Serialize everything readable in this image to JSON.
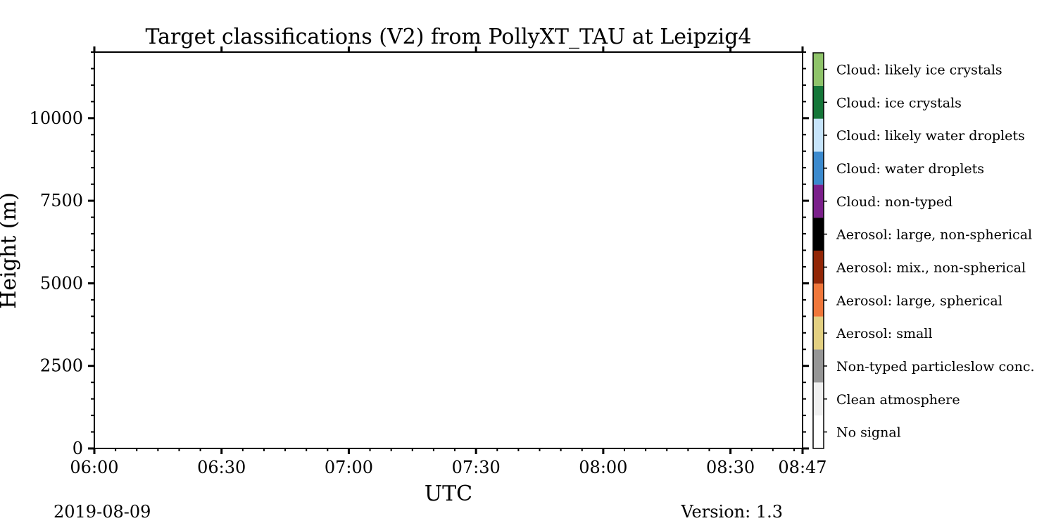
{
  "chart_data": {
    "type": "heatmap",
    "title": "Target classifications (V2) from PollyXT_TAU at Leipzig4",
    "xlabel": "UTC",
    "ylabel": "Height (m)",
    "xlim": [
      "06:00",
      "08:47"
    ],
    "ylim": [
      0,
      12000
    ],
    "x_ticks": [
      "06:00",
      "06:30",
      "07:00",
      "07:30",
      "08:00",
      "08:30",
      "08:47"
    ],
    "y_ticks": [
      0,
      2500,
      5000,
      7500,
      10000
    ],
    "data": [],
    "grid": false,
    "classes": [
      {
        "label": "No signal",
        "color": "#ffffff"
      },
      {
        "label": "Clean atmosphere",
        "color": "#f0f0f0"
      },
      {
        "label": "Non-typed particleslow conc.",
        "color": "#969696"
      },
      {
        "label": "Aerosol: small",
        "color": "#e3d081"
      },
      {
        "label": "Aerosol: large, spherical",
        "color": "#f0773a"
      },
      {
        "label": "Aerosol: mix., non-spherical",
        "color": "#922606"
      },
      {
        "label": "Aerosol: large, non-spherical",
        "color": "#000000"
      },
      {
        "label": "Cloud: non-typed",
        "color": "#7b1f8b"
      },
      {
        "label": "Cloud: water droplets",
        "color": "#3b8ace"
      },
      {
        "label": "Cloud: likely water droplets",
        "color": "#c6e4fa"
      },
      {
        "label": "Cloud: ice crystals",
        "color": "#147638"
      },
      {
        "label": "Cloud: likely ice crystals",
        "color": "#8fc46a"
      }
    ]
  },
  "footer": {
    "date": "2019-08-09",
    "version": "Version: 1.3"
  }
}
